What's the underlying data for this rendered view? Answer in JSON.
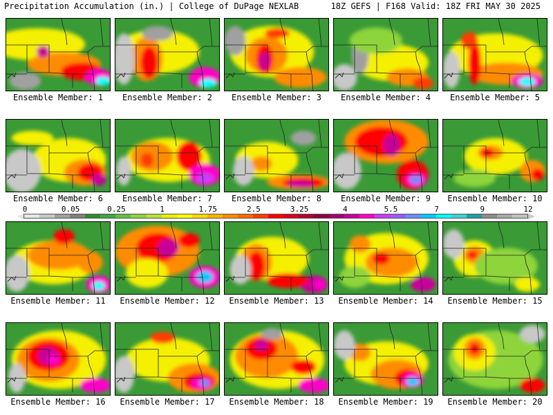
{
  "header": {
    "left": "Precipitation Accumulation (in.) | College of DuPage NEXLAB",
    "right": "18Z GEFS | F168 Valid: 18Z FRI MAY 30 2025"
  },
  "colorbar": {
    "ticks": [
      "0",
      "0.05",
      "0.25",
      "1",
      "1.75",
      "2.5",
      "3.25",
      "4",
      "5.5",
      "7",
      "9",
      "12"
    ],
    "colors": [
      "#e6e6e6",
      "#c8c8c8",
      "#a0a0a0",
      "#7f7f7f",
      "#2e8b2e",
      "#3fa53f",
      "#62c040",
      "#8ed43a",
      "#b8e03a",
      "#e6f000",
      "#ffff00",
      "#ffd700",
      "#ffb300",
      "#ff8c00",
      "#ff6a00",
      "#ff3c00",
      "#ff0000",
      "#d8001e",
      "#b00030",
      "#8b0040",
      "#a0006e",
      "#c8009a",
      "#ff00c8",
      "#c83cff",
      "#9a5cff",
      "#6e8cff",
      "#00c8ff",
      "#00ffff",
      "#3cd2d2",
      "#1ea0a0",
      "#8c8c8c",
      "#a8a8a8",
      "#c0c0c0"
    ]
  },
  "members": [
    {
      "label": "Ensemble Member: 1",
      "blobs": [
        [
          "#f5f000",
          0.3,
          0.35,
          0.45,
          0.22
        ],
        [
          "#ff8c00",
          0.55,
          0.62,
          0.35,
          0.16
        ],
        [
          "#ff0000",
          0.72,
          0.72,
          0.2,
          0.12
        ],
        [
          "#ff00c8",
          0.88,
          0.8,
          0.13,
          0.11
        ],
        [
          "#00ffff",
          0.92,
          0.85,
          0.07,
          0.06
        ],
        [
          "#c8009a",
          0.35,
          0.45,
          0.06,
          0.08
        ],
        [
          "#a0a0a0",
          0.18,
          0.85,
          0.15,
          0.12
        ]
      ]
    },
    {
      "label": "Ensemble Member: 2",
      "blobs": [
        [
          "#f5f000",
          0.4,
          0.45,
          0.4,
          0.3
        ],
        [
          "#ff8c00",
          0.3,
          0.55,
          0.15,
          0.3
        ],
        [
          "#ff0000",
          0.32,
          0.6,
          0.08,
          0.22
        ],
        [
          "#ff00c8",
          0.85,
          0.8,
          0.15,
          0.14
        ],
        [
          "#00ffff",
          0.88,
          0.88,
          0.08,
          0.06
        ],
        [
          "#c8c8c8",
          0.08,
          0.55,
          0.1,
          0.35
        ],
        [
          "#a0a0a0",
          0.4,
          0.2,
          0.15,
          0.1
        ]
      ]
    },
    {
      "label": "Ensemble Member: 3",
      "blobs": [
        [
          "#f5f000",
          0.45,
          0.45,
          0.4,
          0.35
        ],
        [
          "#ff8c00",
          0.4,
          0.5,
          0.2,
          0.25
        ],
        [
          "#ff0000",
          0.38,
          0.55,
          0.08,
          0.2
        ],
        [
          "#c8009a",
          0.38,
          0.58,
          0.05,
          0.12
        ],
        [
          "#ff3c00",
          0.5,
          0.2,
          0.12,
          0.07
        ],
        [
          "#ff8c00",
          0.72,
          0.8,
          0.25,
          0.14
        ],
        [
          "#a0a0a0",
          0.1,
          0.3,
          0.1,
          0.2
        ]
      ]
    },
    {
      "label": "Ensemble Member: 4",
      "blobs": [
        [
          "#f5f000",
          0.55,
          0.6,
          0.35,
          0.25
        ],
        [
          "#ff8c00",
          0.7,
          0.8,
          0.2,
          0.12
        ],
        [
          "#ff3c00",
          0.85,
          0.88,
          0.1,
          0.08
        ],
        [
          "#c8c8c8",
          0.1,
          0.8,
          0.12,
          0.18
        ],
        [
          "#a0a0a0",
          0.25,
          0.5,
          0.08,
          0.25
        ],
        [
          "#8ed43a",
          0.4,
          0.3,
          0.25,
          0.18
        ]
      ]
    },
    {
      "label": "Ensemble Member: 5",
      "blobs": [
        [
          "#f5f000",
          0.5,
          0.5,
          0.45,
          0.3
        ],
        [
          "#ff8c00",
          0.6,
          0.75,
          0.35,
          0.15
        ],
        [
          "#ff0000",
          0.3,
          0.6,
          0.06,
          0.3
        ],
        [
          "#ff00c8",
          0.8,
          0.85,
          0.15,
          0.1
        ],
        [
          "#00ffff",
          0.8,
          0.86,
          0.08,
          0.06
        ],
        [
          "#ff3c00",
          0.25,
          0.3,
          0.08,
          0.12
        ],
        [
          "#c8c8c8",
          0.08,
          0.7,
          0.08,
          0.25
        ]
      ]
    },
    {
      "label": "Ensemble Member: 6",
      "blobs": [
        [
          "#f5f000",
          0.6,
          0.55,
          0.35,
          0.3
        ],
        [
          "#ff8c00",
          0.75,
          0.72,
          0.2,
          0.18
        ],
        [
          "#ff0000",
          0.8,
          0.72,
          0.12,
          0.12
        ],
        [
          "#c8009a",
          0.88,
          0.82,
          0.07,
          0.08
        ],
        [
          "#c8c8c8",
          0.15,
          0.7,
          0.18,
          0.3
        ],
        [
          "#f5f000",
          0.25,
          0.25,
          0.2,
          0.1
        ]
      ]
    },
    {
      "label": "Ensemble Member: 7",
      "blobs": [
        [
          "#f5f000",
          0.5,
          0.55,
          0.4,
          0.3
        ],
        [
          "#ff8c00",
          0.35,
          0.5,
          0.2,
          0.2
        ],
        [
          "#ff0000",
          0.7,
          0.5,
          0.12,
          0.2
        ],
        [
          "#ff00c8",
          0.85,
          0.75,
          0.15,
          0.15
        ],
        [
          "#c83cff",
          0.85,
          0.8,
          0.08,
          0.07
        ],
        [
          "#ff3c00",
          0.3,
          0.55,
          0.06,
          0.1
        ],
        [
          "#c8c8c8",
          0.08,
          0.7,
          0.07,
          0.2
        ]
      ]
    },
    {
      "label": "Ensemble Member: 8",
      "blobs": [
        [
          "#f5f000",
          0.4,
          0.55,
          0.3,
          0.25
        ],
        [
          "#ff8c00",
          0.7,
          0.85,
          0.3,
          0.1
        ],
        [
          "#ff0000",
          0.75,
          0.86,
          0.2,
          0.07
        ],
        [
          "#c8009a",
          0.72,
          0.88,
          0.12,
          0.05
        ],
        [
          "#ff8c00",
          0.35,
          0.6,
          0.1,
          0.1
        ],
        [
          "#c8c8c8",
          0.18,
          0.7,
          0.1,
          0.2
        ],
        [
          "#a0a0a0",
          0.75,
          0.25,
          0.12,
          0.1
        ]
      ]
    },
    {
      "label": "Ensemble Member: 9",
      "blobs": [
        [
          "#ff8c00",
          0.5,
          0.3,
          0.4,
          0.3
        ],
        [
          "#ff0000",
          0.45,
          0.3,
          0.25,
          0.2
        ],
        [
          "#c8009a",
          0.55,
          0.35,
          0.08,
          0.15
        ],
        [
          "#ff0000",
          0.75,
          0.75,
          0.15,
          0.2
        ],
        [
          "#ff00c8",
          0.78,
          0.82,
          0.1,
          0.1
        ],
        [
          "#6e8cff",
          0.78,
          0.82,
          0.06,
          0.06
        ],
        [
          "#c8c8c8",
          0.12,
          0.7,
          0.14,
          0.25
        ]
      ]
    },
    {
      "label": "Ensemble Member: 10",
      "blobs": [
        [
          "#f5f000",
          0.5,
          0.5,
          0.3,
          0.25
        ],
        [
          "#ff8c00",
          0.45,
          0.45,
          0.12,
          0.1
        ],
        [
          "#ff0000",
          0.42,
          0.45,
          0.06,
          0.06
        ],
        [
          "#ff8c00",
          0.85,
          0.7,
          0.12,
          0.15
        ],
        [
          "#ff0000",
          0.9,
          0.75,
          0.06,
          0.08
        ],
        [
          "#8ed43a",
          0.3,
          0.8,
          0.2,
          0.12
        ]
      ]
    },
    {
      "label": "Ensemble Member: 11",
      "blobs": [
        [
          "#f5f000",
          0.45,
          0.55,
          0.4,
          0.3
        ],
        [
          "#ff8c00",
          0.5,
          0.45,
          0.3,
          0.2
        ],
        [
          "#ff0000",
          0.55,
          0.2,
          0.1,
          0.1
        ],
        [
          "#ff00c8",
          0.88,
          0.85,
          0.12,
          0.12
        ],
        [
          "#00ffff",
          0.88,
          0.87,
          0.06,
          0.06
        ],
        [
          "#c8c8c8",
          0.1,
          0.7,
          0.12,
          0.25
        ],
        [
          "#ff8c00",
          0.8,
          0.55,
          0.12,
          0.15
        ]
      ]
    },
    {
      "label": "Ensemble Member: 12",
      "blobs": [
        [
          "#ff8c00",
          0.4,
          0.4,
          0.4,
          0.35
        ],
        [
          "#ff0000",
          0.4,
          0.35,
          0.2,
          0.2
        ],
        [
          "#c8009a",
          0.5,
          0.35,
          0.1,
          0.12
        ],
        [
          "#ff00c8",
          0.85,
          0.75,
          0.15,
          0.15
        ],
        [
          "#00c8ff",
          0.85,
          0.75,
          0.08,
          0.08
        ],
        [
          "#f5f000",
          0.3,
          0.7,
          0.2,
          0.2
        ],
        [
          "#ff0000",
          0.7,
          0.25,
          0.1,
          0.1
        ]
      ]
    },
    {
      "label": "Ensemble Member: 13",
      "blobs": [
        [
          "#f5f000",
          0.45,
          0.5,
          0.35,
          0.3
        ],
        [
          "#ff8c00",
          0.3,
          0.55,
          0.15,
          0.25
        ],
        [
          "#ff0000",
          0.3,
          0.6,
          0.08,
          0.2
        ],
        [
          "#c8009a",
          0.85,
          0.85,
          0.13,
          0.12
        ],
        [
          "#ff0000",
          0.6,
          0.8,
          0.2,
          0.1
        ],
        [
          "#ff00c8",
          0.9,
          0.85,
          0.06,
          0.07
        ],
        [
          "#c8c8c8",
          0.15,
          0.65,
          0.1,
          0.2
        ]
      ]
    },
    {
      "label": "Ensemble Member: 14",
      "blobs": [
        [
          "#f5f000",
          0.5,
          0.5,
          0.4,
          0.35
        ],
        [
          "#ff8c00",
          0.55,
          0.55,
          0.25,
          0.2
        ],
        [
          "#ff0000",
          0.45,
          0.5,
          0.08,
          0.08
        ],
        [
          "#c8009a",
          0.85,
          0.85,
          0.12,
          0.1
        ],
        [
          "#ff8c00",
          0.25,
          0.3,
          0.1,
          0.12
        ],
        [
          "#8ed43a",
          0.2,
          0.75,
          0.15,
          0.15
        ]
      ]
    },
    {
      "label": "Ensemble Member: 15",
      "blobs": [
        [
          "#f5f000",
          0.3,
          0.5,
          0.2,
          0.25
        ],
        [
          "#ff8c00",
          0.3,
          0.45,
          0.1,
          0.12
        ],
        [
          "#ff0000",
          0.28,
          0.45,
          0.05,
          0.05
        ],
        [
          "#8ed43a",
          0.6,
          0.6,
          0.3,
          0.25
        ],
        [
          "#c8c8c8",
          0.1,
          0.3,
          0.1,
          0.2
        ],
        [
          "#f5f000",
          0.8,
          0.85,
          0.12,
          0.1
        ]
      ]
    },
    {
      "label": "Ensemble Member: 16",
      "blobs": [
        [
          "#f5f000",
          0.5,
          0.5,
          0.45,
          0.4
        ],
        [
          "#ff8c00",
          0.4,
          0.5,
          0.3,
          0.3
        ],
        [
          "#ff0000",
          0.4,
          0.45,
          0.2,
          0.2
        ],
        [
          "#c8009a",
          0.4,
          0.45,
          0.1,
          0.12
        ],
        [
          "#ff00c8",
          0.45,
          0.5,
          0.06,
          0.08
        ],
        [
          "#ff00c8",
          0.85,
          0.85,
          0.15,
          0.1
        ],
        [
          "#c8c8c8",
          0.1,
          0.75,
          0.08,
          0.2
        ]
      ]
    },
    {
      "label": "Ensemble Member: 17",
      "blobs": [
        [
          "#f5f000",
          0.5,
          0.5,
          0.4,
          0.3
        ],
        [
          "#ff8c00",
          0.75,
          0.75,
          0.25,
          0.2
        ],
        [
          "#ff0000",
          0.8,
          0.8,
          0.15,
          0.12
        ],
        [
          "#ff00c8",
          0.82,
          0.82,
          0.1,
          0.08
        ],
        [
          "#6e8cff",
          0.85,
          0.82,
          0.05,
          0.05
        ],
        [
          "#ff3c00",
          0.45,
          0.2,
          0.12,
          0.08
        ],
        [
          "#c8c8c8",
          0.08,
          0.7,
          0.1,
          0.25
        ]
      ]
    },
    {
      "label": "Ensemble Member: 18",
      "blobs": [
        [
          "#f5f000",
          0.5,
          0.5,
          0.45,
          0.4
        ],
        [
          "#ff8c00",
          0.4,
          0.45,
          0.3,
          0.3
        ],
        [
          "#ff0000",
          0.35,
          0.35,
          0.15,
          0.15
        ],
        [
          "#c8009a",
          0.35,
          0.3,
          0.06,
          0.08
        ],
        [
          "#ff00c8",
          0.85,
          0.85,
          0.15,
          0.1
        ],
        [
          "#ff0000",
          0.75,
          0.6,
          0.12,
          0.1
        ],
        [
          "#a0a0a0",
          0.45,
          0.15,
          0.1,
          0.08
        ]
      ]
    },
    {
      "label": "Ensemble Member: 19",
      "blobs": [
        [
          "#f5f000",
          0.5,
          0.55,
          0.4,
          0.3
        ],
        [
          "#ff8c00",
          0.6,
          0.7,
          0.25,
          0.2
        ],
        [
          "#ff0000",
          0.7,
          0.75,
          0.12,
          0.12
        ],
        [
          "#ff00c8",
          0.75,
          0.78,
          0.1,
          0.1
        ],
        [
          "#00c8ff",
          0.75,
          0.8,
          0.06,
          0.06
        ],
        [
          "#ff8c00",
          0.25,
          0.4,
          0.1,
          0.12
        ],
        [
          "#c8c8c8",
          0.1,
          0.3,
          0.1,
          0.2
        ]
      ]
    },
    {
      "label": "Ensemble Member: 20",
      "blobs": [
        [
          "#8ed43a",
          0.5,
          0.5,
          0.45,
          0.4
        ],
        [
          "#f5f000",
          0.3,
          0.4,
          0.2,
          0.25
        ],
        [
          "#ff8c00",
          0.3,
          0.35,
          0.1,
          0.15
        ],
        [
          "#ff0000",
          0.3,
          0.35,
          0.05,
          0.08
        ],
        [
          "#ff0000",
          0.85,
          0.85,
          0.12,
          0.1
        ],
        [
          "#c8c8c8",
          0.85,
          0.15,
          0.12,
          0.12
        ]
      ]
    }
  ]
}
